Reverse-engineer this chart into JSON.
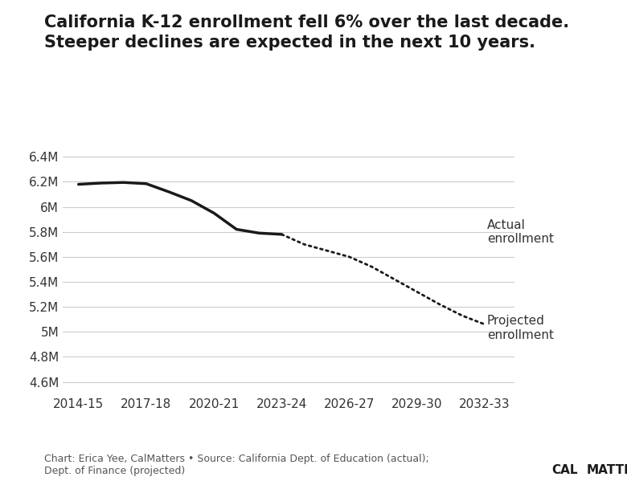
{
  "title": "California K-12 enrollment fell 6% over the last decade.\nSteeper declines are expected in the next 10 years.",
  "background_color": "#ffffff",
  "line_color": "#1a1a1a",
  "actual_x": [
    2014.5,
    2015.5,
    2016.5,
    2017.5,
    2018.5,
    2019.5,
    2020.5,
    2021.5,
    2022.5,
    2023.5
  ],
  "actual_y": [
    6180000,
    6190000,
    6195000,
    6185000,
    6120000,
    6050000,
    5950000,
    5820000,
    5790000,
    5780000
  ],
  "projected_x": [
    2023.5,
    2024.5,
    2025.5,
    2026.5,
    2027.5,
    2028.5,
    2029.5,
    2030.5,
    2031.5,
    2032.5
  ],
  "projected_y": [
    5780000,
    5700000,
    5650000,
    5600000,
    5520000,
    5420000,
    5320000,
    5220000,
    5130000,
    5060000
  ],
  "xtick_positions": [
    2014.5,
    2017.5,
    2020.5,
    2023.5,
    2026.5,
    2029.5,
    2032.5
  ],
  "xtick_labels": [
    "2014-15",
    "2017-18",
    "2020-21",
    "2023-24",
    "2026-27",
    "2029-30",
    "2032-33"
  ],
  "ytick_positions": [
    4600000,
    4800000,
    5000000,
    5200000,
    5400000,
    5600000,
    5800000,
    6000000,
    6200000,
    6400000
  ],
  "ytick_labels": [
    "4.6M",
    "4.8M",
    "5M",
    "5.2M",
    "5.4M",
    "5.6M",
    "5.8M",
    "6M",
    "6.2M",
    "6.4M"
  ],
  "ylim": [
    4500000,
    6500000
  ],
  "xlim": [
    2013.8,
    2033.8
  ],
  "label_actual": "Actual\nenrollment",
  "label_projected": "Projected\nenrollment",
  "footnote": "Chart: Erica Yee, CalMatters • Source: California Dept. of Education (actual);\nDept. of Finance (projected)"
}
